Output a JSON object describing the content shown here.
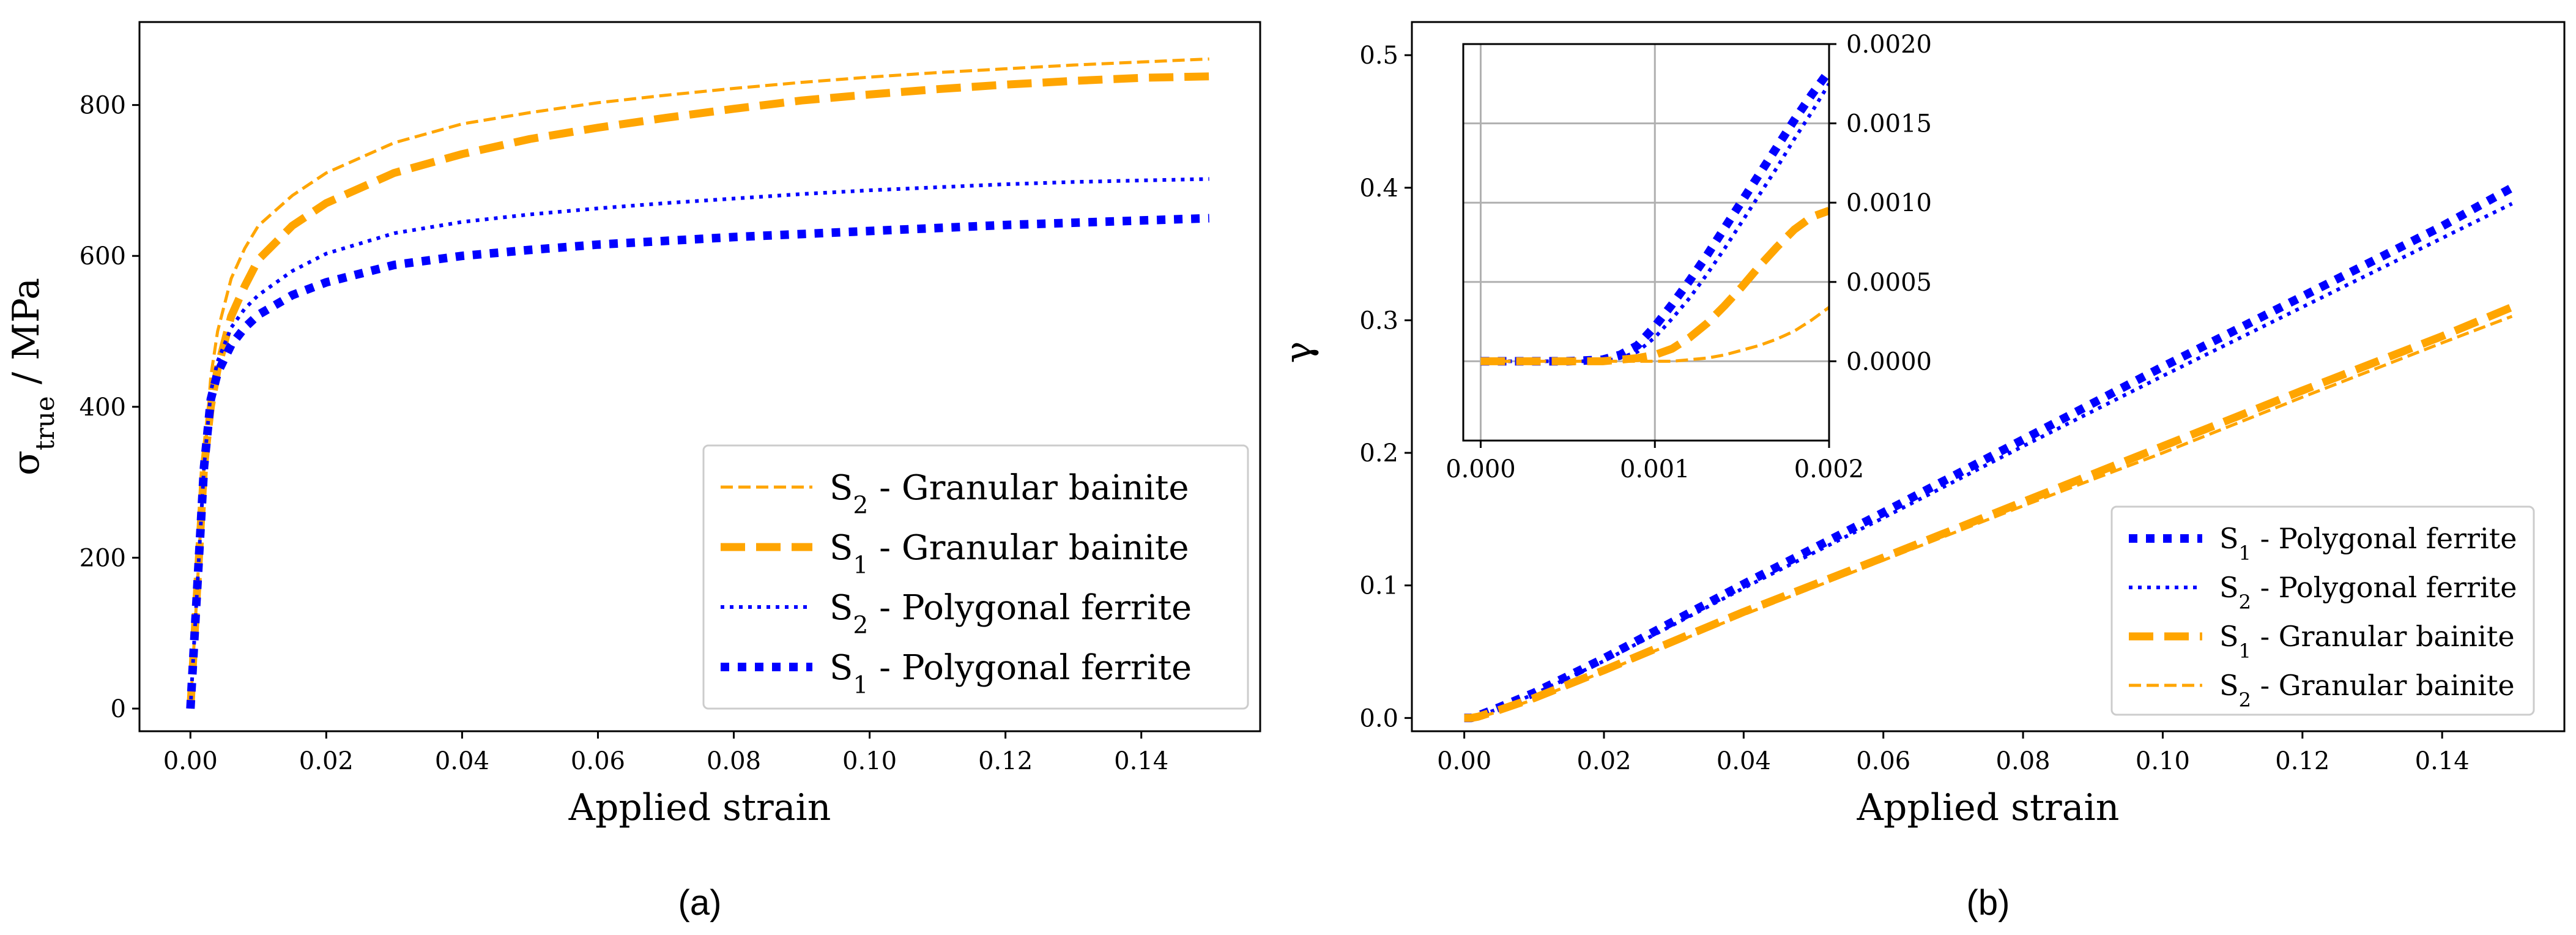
{
  "chart_data": [
    {
      "type": "line",
      "panel": "a",
      "caption": "(a)",
      "xlabel": "Applied strain",
      "ylabel": "σ_true / MPa",
      "ylabel_parts": {
        "sym": "σ",
        "sub": "true",
        "rest": " / MPa"
      },
      "xlim": [
        -0.0075,
        0.1575
      ],
      "ylim": [
        -30,
        910
      ],
      "xticks": [
        0.0,
        0.02,
        0.04,
        0.06,
        0.08,
        0.1,
        0.12,
        0.14
      ],
      "xtick_labels": [
        "0.00",
        "0.02",
        "0.04",
        "0.06",
        "0.08",
        "0.10",
        "0.12",
        "0.14"
      ],
      "yticks": [
        0,
        200,
        400,
        600,
        800
      ],
      "ytick_labels": [
        "0",
        "200",
        "400",
        "600",
        "800"
      ],
      "grid": false,
      "legend_position": "lower-right",
      "x": [
        0,
        0.001,
        0.002,
        0.003,
        0.004,
        0.006,
        0.008,
        0.01,
        0.015,
        0.02,
        0.03,
        0.04,
        0.05,
        0.06,
        0.07,
        0.08,
        0.09,
        0.1,
        0.11,
        0.12,
        0.13,
        0.14,
        0.15
      ],
      "series": [
        {
          "name": "S2 - Granular bainite",
          "sym": "S",
          "sub": "2",
          "suffix": " - Granular bainite",
          "color": "#ffa500",
          "style": "dashed-thin",
          "values": [
            0,
            160,
            320,
            440,
            500,
            570,
            610,
            640,
            680,
            710,
            750,
            775,
            790,
            803,
            813,
            822,
            830,
            837,
            843,
            848,
            853,
            857,
            861
          ]
        },
        {
          "name": "S1 - Granular bainite",
          "sym": "S",
          "sub": "1",
          "suffix": " - Granular bainite",
          "color": "#ffa500",
          "style": "dashed-thick",
          "values": [
            0,
            160,
            320,
            400,
            450,
            520,
            560,
            595,
            640,
            670,
            710,
            735,
            755,
            770,
            783,
            795,
            806,
            814,
            821,
            827,
            832,
            836,
            838
          ]
        },
        {
          "name": "S2 - Polygonal ferrite",
          "sym": "S",
          "sub": "2",
          "suffix": " - Polygonal ferrite",
          "color": "#0000ff",
          "style": "dotted-thin",
          "values": [
            0,
            160,
            320,
            420,
            460,
            505,
            530,
            548,
            580,
            603,
            630,
            645,
            655,
            663,
            670,
            676,
            682,
            687,
            691,
            695,
            698,
            700,
            702
          ]
        },
        {
          "name": "S1 - Polygonal ferrite",
          "sym": "S",
          "sub": "1",
          "suffix": " - Polygonal ferrite",
          "color": "#0000ff",
          "style": "dotted-thick",
          "values": [
            0,
            160,
            320,
            410,
            445,
            482,
            505,
            522,
            548,
            565,
            588,
            600,
            608,
            615,
            620,
            625,
            629,
            633,
            637,
            641,
            644,
            647,
            650
          ]
        }
      ]
    },
    {
      "type": "line",
      "panel": "b",
      "caption": "(b)",
      "xlabel": "Applied strain",
      "ylabel": "γ",
      "xlim": [
        -0.0075,
        0.1575
      ],
      "ylim": [
        -0.01,
        0.525
      ],
      "xticks": [
        0.0,
        0.02,
        0.04,
        0.06,
        0.08,
        0.1,
        0.12,
        0.14
      ],
      "xtick_labels": [
        "0.00",
        "0.02",
        "0.04",
        "0.06",
        "0.08",
        "0.10",
        "0.12",
        "0.14"
      ],
      "yticks": [
        0.0,
        0.1,
        0.2,
        0.3,
        0.4,
        0.5
      ],
      "ytick_labels": [
        "0.0",
        "0.1",
        "0.2",
        "0.3",
        "0.4",
        "0.5"
      ],
      "grid": false,
      "legend_position": "lower-right",
      "x": [
        0,
        0.001,
        0.002,
        0.005,
        0.01,
        0.02,
        0.04,
        0.06,
        0.08,
        0.1,
        0.12,
        0.14,
        0.15
      ],
      "series": [
        {
          "name": "S1 - Polygonal ferrite",
          "sym": "S",
          "sub": "1",
          "suffix": " - Polygonal ferrite",
          "color": "#0000ff",
          "style": "dotted-thick",
          "values": [
            0,
            0,
            0.0018,
            0.008,
            0.019,
            0.045,
            0.101,
            0.155,
            0.21,
            0.265,
            0.318,
            0.371,
            0.4
          ]
        },
        {
          "name": "S2 - Polygonal ferrite",
          "sym": "S",
          "sub": "2",
          "suffix": " - Polygonal ferrite",
          "color": "#0000ff",
          "style": "dotted-thin",
          "values": [
            0,
            0,
            0.0016,
            0.007,
            0.018,
            0.043,
            0.098,
            0.151,
            0.205,
            0.258,
            0.31,
            0.362,
            0.388
          ]
        },
        {
          "name": "S1 - Granular bainite",
          "sym": "S",
          "sub": "1",
          "suffix": " - Granular bainite",
          "color": "#ffa500",
          "style": "dashed-thick",
          "values": [
            0,
            0,
            0.001,
            0.006,
            0.015,
            0.036,
            0.08,
            0.121,
            0.163,
            0.205,
            0.247,
            0.288,
            0.31
          ]
        },
        {
          "name": "S2 - Granular bainite",
          "sym": "S",
          "sub": "2",
          "suffix": " - Granular bainite",
          "color": "#ffa500",
          "style": "dashed-thin",
          "values": [
            0,
            0,
            0.0003,
            0.005,
            0.014,
            0.035,
            0.078,
            0.119,
            0.16,
            0.2,
            0.242,
            0.283,
            0.303
          ]
        }
      ],
      "inset": {
        "xlim": [
          -0.0001,
          0.002
        ],
        "ylim": [
          -0.0005,
          0.002
        ],
        "xticks": [
          0.0,
          0.001,
          0.002
        ],
        "xtick_labels": [
          "0.000",
          "0.001",
          "0.002"
        ],
        "yticks": [
          0.0,
          0.0005,
          0.001,
          0.0015,
          0.002
        ],
        "ytick_labels": [
          "0.0000",
          "0.0005",
          "0.0010",
          "0.0015",
          "0.0020"
        ],
        "grid": true,
        "x": [
          0,
          0.0005,
          0.0007,
          0.0008,
          0.0009,
          0.001,
          0.0011,
          0.0012,
          0.0013,
          0.0014,
          0.0015,
          0.0016,
          0.0017,
          0.0018,
          0.0019,
          0.002
        ],
        "series": [
          {
            "name": "S1 - Polygonal ferrite",
            "color": "#0000ff",
            "style": "dotted-thick",
            "values": [
              0,
              0,
              1e-05,
              4e-05,
              0.0001,
              0.00022,
              0.00036,
              0.00051,
              0.00067,
              0.00084,
              0.00101,
              0.00118,
              0.00135,
              0.00152,
              0.00168,
              0.00183
            ]
          },
          {
            "name": "S2 - Polygonal ferrite",
            "color": "#0000ff",
            "style": "dotted-thin",
            "values": [
              0,
              0,
              0,
              2e-05,
              6e-05,
              0.00015,
              0.00027,
              0.0004,
              0.00055,
              0.00071,
              0.00088,
              0.00105,
              0.00122,
              0.0014,
              0.00157,
              0.00175
            ]
          },
          {
            "name": "S1 - Granular bainite",
            "color": "#ffa500",
            "style": "dashed-thick",
            "values": [
              0,
              0,
              0,
              1e-05,
              2e-05,
              4e-05,
              8e-05,
              0.00015,
              0.00024,
              0.00035,
              0.00047,
              0.0006,
              0.00072,
              0.00083,
              0.00091,
              0.00095
            ]
          },
          {
            "name": "S2 - Granular bainite",
            "color": "#ffa500",
            "style": "dashed-thin",
            "values": [
              0,
              0,
              0,
              0,
              0,
              0,
              0,
              1e-05,
              2e-05,
              4e-05,
              7e-05,
              0.0001,
              0.00014,
              0.00019,
              0.00026,
              0.00034
            ]
          }
        ]
      }
    }
  ]
}
